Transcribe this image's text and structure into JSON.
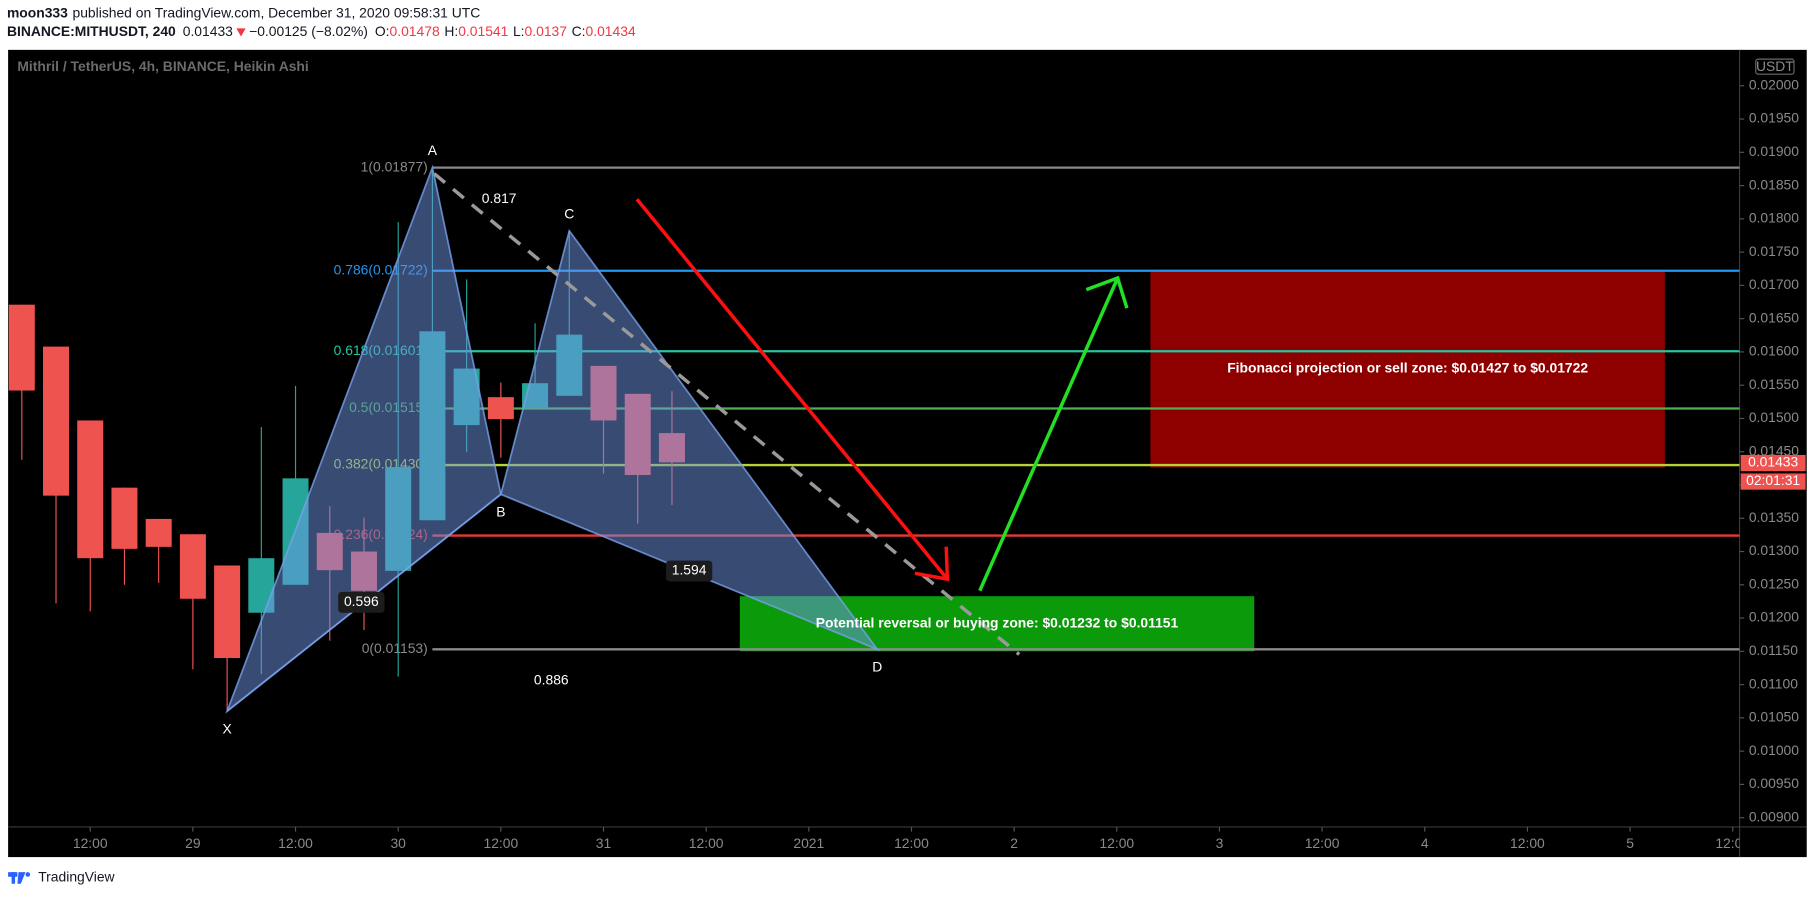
{
  "header": {
    "author": "moon333",
    "published": "published on TradingView.com, December 31, 2020 09:58:31 UTC",
    "symbol": "BINANCE:MITHUSDT, 240",
    "change": "−0.00125 (−8.02%)",
    "ohlc": [
      {
        "key": "O:",
        "value": 0.01478
      },
      {
        "key": "H:",
        "value": 0.01541
      },
      {
        "key": "L:",
        "value": 0.0137
      },
      {
        "key": "C:",
        "value": 0.01434
      }
    ],
    "countdown": "02:01:31",
    "currency": "USDT",
    "brand": "TradingView"
  },
  "chart_data": {
    "type": "candlestick",
    "title": "Mithril / TetherUS, 4h, BINANCE, Heikin Ashi",
    "last_price": 0.01433,
    "up_color": "#26a69a",
    "down_color": "#ef5350",
    "x": [
      0,
      1,
      2,
      3,
      4,
      5,
      6,
      7,
      8,
      9,
      10,
      11,
      12,
      13,
      14,
      15,
      16,
      17,
      18,
      19
    ],
    "open": [
      0.01671,
      0.01608,
      0.01497,
      0.01396,
      0.01349,
      0.01326,
      0.01279,
      0.01208,
      0.0125,
      0.01328,
      0.013,
      0.01271,
      0.01347,
      0.0149,
      0.01532,
      0.01516,
      0.01534,
      0.01579,
      0.01537,
      0.01478
    ],
    "high": [
      0.01671,
      0.01608,
      0.01497,
      0.01396,
      0.01349,
      0.01326,
      0.01279,
      0.01487,
      0.01549,
      0.01368,
      0.01351,
      0.01795,
      0.01873,
      0.01709,
      0.01554,
      0.01643,
      0.01782,
      0.01579,
      0.01537,
      0.01541
    ],
    "low": [
      0.01438,
      0.01222,
      0.0121,
      0.0125,
      0.01253,
      0.01123,
      0.0106,
      0.01116,
      0.0125,
      0.01166,
      0.01182,
      0.01112,
      0.01347,
      0.0145,
      0.01441,
      0.01516,
      0.01534,
      0.01417,
      0.01342,
      0.0137
    ],
    "close": [
      0.01542,
      0.01384,
      0.0129,
      0.01304,
      0.01307,
      0.01229,
      0.0114,
      0.0129,
      0.0141,
      0.01272,
      0.01241,
      0.01427,
      0.01631,
      0.01575,
      0.01499,
      0.01553,
      0.01626,
      0.01497,
      0.01415,
      0.01434
    ],
    "xlim": [
      -0.4,
      50.2
    ],
    "xticks": [
      {
        "value": 2,
        "label": "12:00"
      },
      {
        "value": 5,
        "label": "29"
      },
      {
        "value": 8,
        "label": "12:00"
      },
      {
        "value": 11,
        "label": "30"
      },
      {
        "value": 14,
        "label": "12:00"
      },
      {
        "value": 17,
        "label": "31"
      },
      {
        "value": 20,
        "label": "12:00"
      },
      {
        "value": 23,
        "label": "2021"
      },
      {
        "value": 26,
        "label": "12:00"
      },
      {
        "value": 29,
        "label": "2"
      },
      {
        "value": 32,
        "label": "12:00"
      },
      {
        "value": 35,
        "label": "3"
      },
      {
        "value": 38,
        "label": "12:00"
      },
      {
        "value": 41,
        "label": "4"
      },
      {
        "value": 44,
        "label": "12:00"
      },
      {
        "value": 47,
        "label": "5"
      },
      {
        "value": 50,
        "label": "12:00"
      }
    ],
    "ylim": [
      0.00886,
      0.02054
    ],
    "yticks": [
      {
        "value": 0.02,
        "label": "0.02000"
      },
      {
        "value": 0.0195,
        "label": "0.01950"
      },
      {
        "value": 0.019,
        "label": "0.01900"
      },
      {
        "value": 0.0185,
        "label": "0.01850"
      },
      {
        "value": 0.018,
        "label": "0.01800"
      },
      {
        "value": 0.0175,
        "label": "0.01750"
      },
      {
        "value": 0.017,
        "label": "0.01700"
      },
      {
        "value": 0.0165,
        "label": "0.01650"
      },
      {
        "value": 0.016,
        "label": "0.01600"
      },
      {
        "value": 0.0155,
        "label": "0.01550"
      },
      {
        "value": 0.015,
        "label": "0.01500"
      },
      {
        "value": 0.0145,
        "label": "0.01450"
      },
      {
        "value": 0.014,
        "label": "0.01400"
      },
      {
        "value": 0.0135,
        "label": "0.01350"
      },
      {
        "value": 0.013,
        "label": "0.01300"
      },
      {
        "value": 0.0125,
        "label": "0.01250"
      },
      {
        "value": 0.012,
        "label": "0.01200"
      },
      {
        "value": 0.0115,
        "label": "0.01150"
      },
      {
        "value": 0.011,
        "label": "0.01100"
      },
      {
        "value": 0.0105,
        "label": "0.01050"
      },
      {
        "value": 0.01,
        "label": "0.01000"
      },
      {
        "value": 0.0095,
        "label": "0.00950"
      },
      {
        "value": 0.009,
        "label": "0.00900"
      }
    ],
    "grid": false,
    "fib_levels": [
      {
        "label": "1(0.01877)",
        "price": 0.01877,
        "color": "#8a8a8a"
      },
      {
        "label": "0.786(0.01722)",
        "price": 0.01722,
        "color": "#2196f3"
      },
      {
        "label": "0.618(0.01601)",
        "price": 0.01601,
        "color": "#26c6a0"
      },
      {
        "label": "0.5(0.01515)",
        "price": 0.01515,
        "color": "#4caf50"
      },
      {
        "label": "0.382(0.01430)",
        "price": 0.0143,
        "color": "#b5d334"
      },
      {
        "label": "0.236(0.01324)",
        "price": 0.01324,
        "color": "#e53935"
      },
      {
        "label": "0(0.01153)",
        "price": 0.01153,
        "color": "#8a8a8a"
      }
    ],
    "pattern": [
      {
        "label": "X",
        "x": 6,
        "price": 0.0106
      },
      {
        "label": "A",
        "x": 12,
        "price": 0.01877
      },
      {
        "label": "B",
        "x": 14,
        "price": 0.01386
      },
      {
        "label": "C",
        "x": 16,
        "price": 0.01782
      },
      {
        "label": "D",
        "x": 25,
        "price": 0.01153
      }
    ],
    "ratios": [
      0.817,
      0.596,
      1.594,
      0.886
    ],
    "zones": [
      {
        "text": "Fibonacci projection or sell zone: $0.01427 to $0.01722",
        "start": 33,
        "end": 48,
        "top": 0.01722,
        "bottom": 0.01427,
        "color": "#8e0000"
      },
      {
        "text": "Potential reversal or buying zone: $0.01232 to $0.01151",
        "start": 21,
        "end": 36,
        "top": 0.01232,
        "bottom": 0.01151,
        "color": "#0a9a0a"
      }
    ]
  }
}
